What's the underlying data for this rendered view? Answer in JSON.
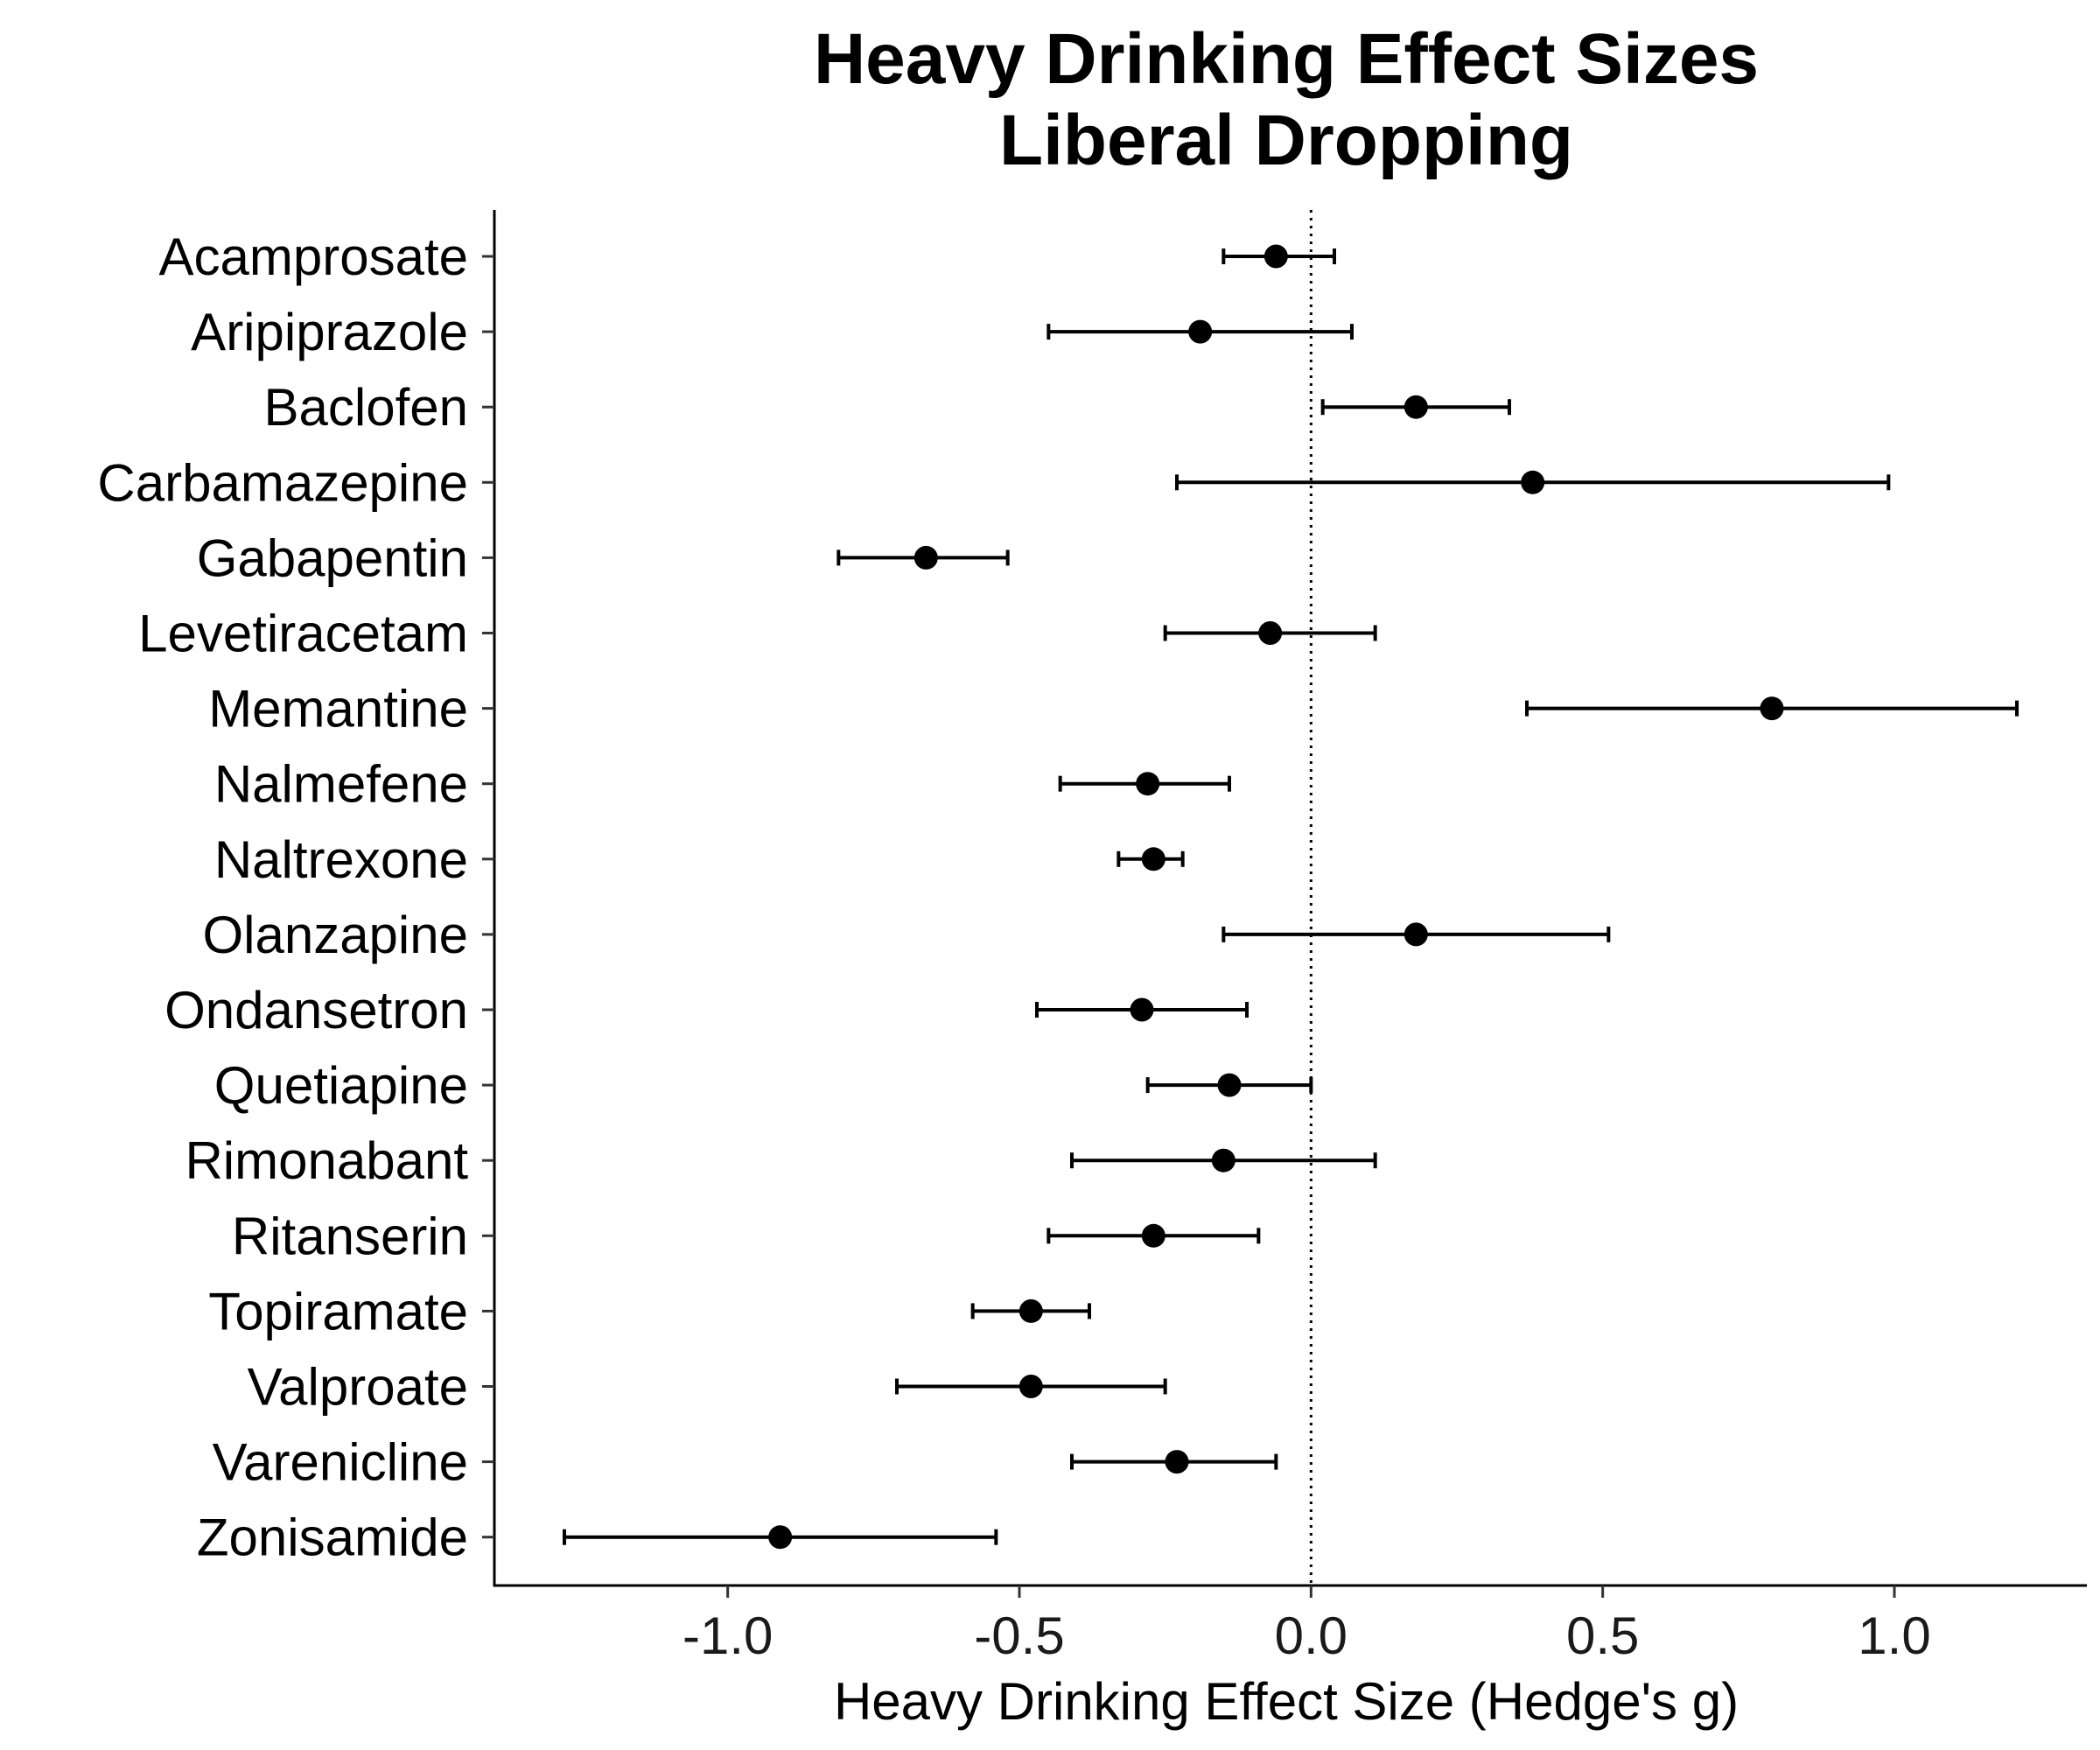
{
  "chart_data": {
    "type": "scatter",
    "subtype": "forest-plot",
    "title_lines": [
      "Heavy Drinking Effect Sizes",
      "Liberal Dropping"
    ],
    "xlabel": "Heavy Drinking Effect Size (Hedge's g)",
    "ylabel": "",
    "xlim": [
      -1.4,
      1.33
    ],
    "xticks": [
      -1.0,
      -0.5,
      0.0,
      0.5,
      1.0
    ],
    "xtick_labels": [
      "-1.0",
      "-0.5",
      "0.0",
      "0.5",
      "1.0"
    ],
    "reference_line": {
      "x": 0.0,
      "style": "dotted"
    },
    "grid": false,
    "legend": "none",
    "marker_color": "#000000",
    "categories": [
      "Acamprosate",
      "Aripiprazole",
      "Baclofen",
      "Carbamazepine",
      "Gabapentin",
      "Levetiracetam",
      "Memantine",
      "Nalmefene",
      "Naltrexone",
      "Olanzapine",
      "Ondansetron",
      "Quetiapine",
      "Rimonabant",
      "Ritanserin",
      "Topiramate",
      "Valproate",
      "Varenicline",
      "Zonisamide"
    ],
    "estimates": [
      -0.06,
      -0.19,
      0.18,
      0.38,
      -0.66,
      -0.07,
      0.79,
      -0.28,
      -0.27,
      0.18,
      -0.29,
      -0.14,
      -0.15,
      -0.27,
      -0.48,
      -0.48,
      -0.23,
      -0.91
    ],
    "ci_lower": [
      -0.15,
      -0.45,
      0.02,
      -0.23,
      -0.81,
      -0.25,
      0.37,
      -0.43,
      -0.33,
      -0.15,
      -0.47,
      -0.28,
      -0.41,
      -0.45,
      -0.58,
      -0.71,
      -0.41,
      -1.28
    ],
    "ci_upper": [
      0.04,
      0.07,
      0.34,
      0.99,
      -0.52,
      0.11,
      1.21,
      -0.14,
      -0.22,
      0.51,
      -0.11,
      0.0,
      0.11,
      -0.09,
      -0.38,
      -0.25,
      -0.06,
      -0.54
    ]
  }
}
